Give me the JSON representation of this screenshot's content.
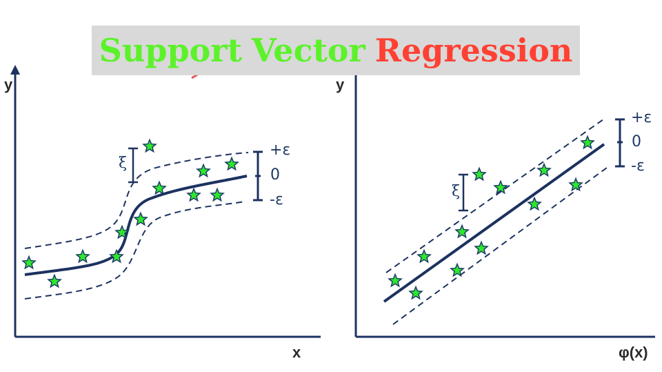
{
  "title": {
    "part1": "Support",
    "part2": "Vector",
    "part3": "Regression",
    "colors": {
      "green": "#5cf22a",
      "red": "#ff4133",
      "background": "#d9d9d9"
    }
  },
  "left_panel": {
    "x_axis_label": "x",
    "y_axis_label": "y",
    "slack_symbol": "ξ",
    "margin_labels": {
      "upper": "+ε",
      "center": "0",
      "lower": "-ε"
    }
  },
  "right_panel": {
    "x_axis_label": "φ(x)",
    "y_axis_label": "y",
    "slack_symbol": "ξ",
    "margin_labels": {
      "upper": "+ε",
      "center": "0",
      "lower": "-ε"
    }
  },
  "colors": {
    "line": "#1c3260",
    "star_fill": "#2ee62e",
    "star_stroke": "#1c3a66",
    "arrow": "#e0575a"
  }
}
